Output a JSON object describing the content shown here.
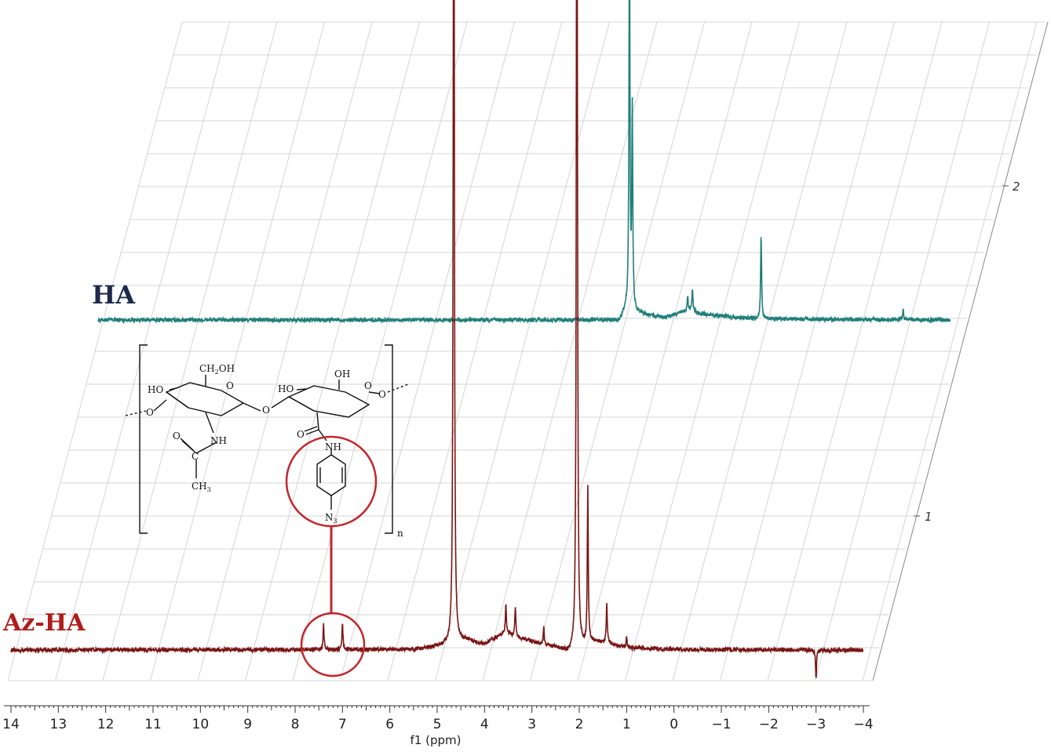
{
  "chart_data": {
    "type": "line",
    "subtype": "stacked 1H NMR spectra (pseudo-3D)",
    "xlabel": "f1 (ppm)",
    "xlim": [
      14,
      -4
    ],
    "x_reversed": true,
    "x_ticks": [
      14,
      13,
      12,
      11,
      10,
      9,
      8,
      7,
      6,
      5,
      4,
      3,
      2,
      1,
      0,
      -1,
      -2,
      -3,
      -4
    ],
    "depth_axis_ticks": [
      1,
      2
    ],
    "grid": true,
    "series": [
      {
        "name": "HA",
        "color": "#1f7f7a",
        "label_color": "#1c2a4a",
        "depth_index": 2,
        "baseline_offset": [
          [
            14,
            0
          ],
          [
            3.2,
            0
          ],
          [
            3.0,
            -0.05
          ],
          [
            2.85,
            0.4
          ],
          [
            2.6,
            0.25
          ],
          [
            2.2,
            0.12
          ],
          [
            2.0,
            0.1
          ],
          [
            1.8,
            0.2
          ],
          [
            1.5,
            0.35
          ],
          [
            1.2,
            0.2
          ],
          [
            0.5,
            0.08
          ],
          [
            0,
            0.05
          ],
          [
            -1,
            0.02
          ],
          [
            -4,
            0
          ]
        ],
        "peaks": [
          {
            "ppm": 2.78,
            "height": 14
          },
          {
            "ppm": 2.72,
            "height": 7
          },
          {
            "ppm": 1.55,
            "height": 0.5
          },
          {
            "ppm": 1.45,
            "height": 0.8
          },
          {
            "ppm": 0.0,
            "height": 3.0
          },
          {
            "ppm": -3.0,
            "height": 0.4
          }
        ]
      },
      {
        "name": "Az-HA",
        "color": "#7a1414",
        "label_color": "#b01c1c",
        "depth_index": 1,
        "baseline_offset": [
          [
            14,
            0
          ],
          [
            5.5,
            0.02
          ],
          [
            4.9,
            0.15
          ],
          [
            4.4,
            0.35
          ],
          [
            4.0,
            0.2
          ],
          [
            3.6,
            0.6
          ],
          [
            3.0,
            0.3
          ],
          [
            2.5,
            0.1
          ],
          [
            2.2,
            -0.1
          ],
          [
            1.7,
            0.3
          ],
          [
            1.4,
            0.25
          ],
          [
            1.0,
            0.08
          ],
          [
            0,
            0.02
          ],
          [
            -4,
            0
          ]
        ],
        "peaks": [
          {
            "ppm": 7.4,
            "height": 0.9
          },
          {
            "ppm": 7.0,
            "height": 0.9
          },
          {
            "ppm": 4.65,
            "height": 40
          },
          {
            "ppm": 3.55,
            "height": 1.1
          },
          {
            "ppm": 3.35,
            "height": 1.1
          },
          {
            "ppm": 2.75,
            "height": 0.6
          },
          {
            "ppm": 2.05,
            "height": 40
          },
          {
            "ppm": 1.82,
            "height": 5.5
          },
          {
            "ppm": 1.42,
            "height": 1.4
          },
          {
            "ppm": 1.0,
            "height": 0.4
          },
          {
            "ppm": -3.0,
            "height": -1.0
          }
        ]
      }
    ],
    "annotations": [
      {
        "type": "circle",
        "target_series": "Az-HA",
        "ppm_range": [
          7.6,
          6.8
        ],
        "meaning": "aromatic azidophenyl protons"
      }
    ]
  },
  "structure": {
    "labels": {
      "ch2oh_left": "CH",
      "ch2oh_sub": "2",
      "ch2oh_right": "OH",
      "ho_1": "HO",
      "ho_2": "HO",
      "oh_top": "OH",
      "nh_1": "NH",
      "nh_2": "NH",
      "ring_o_1": "O",
      "ring_o_2": "O",
      "bridge_o": "O",
      "end_o_left": "O",
      "end_o_right": "O",
      "carbonyl_o_1": "O",
      "carbonyl_o_2": "O",
      "carbon": "C",
      "ch3_left": "CH",
      "ch3_sub": "3",
      "n3_left": "N",
      "n3_sub": "3",
      "repeat": "n"
    }
  },
  "colors": {
    "grid": "#d4d4d4",
    "axis": "#333333",
    "highlight": "#c0272d"
  }
}
